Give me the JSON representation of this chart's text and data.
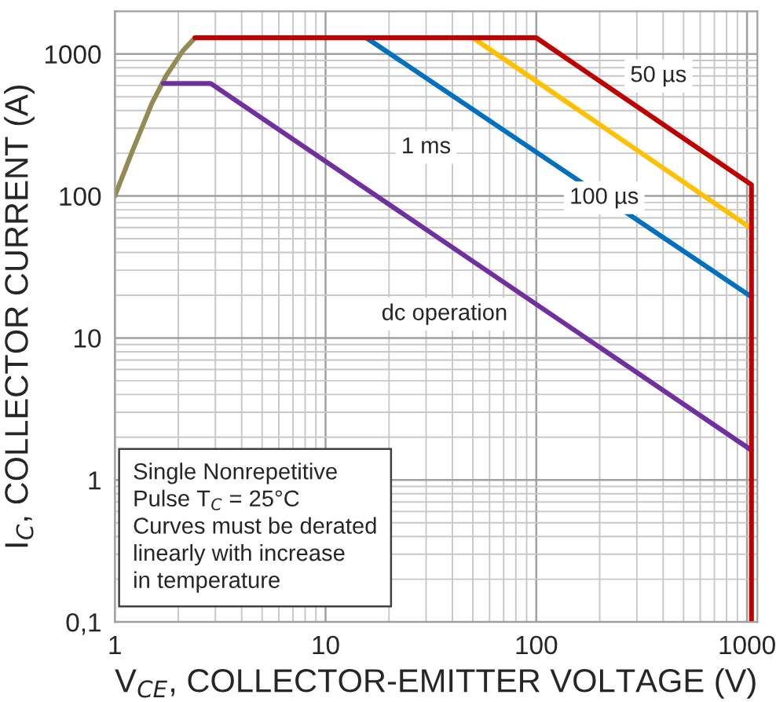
{
  "chart_data": {
    "type": "line",
    "xlabel": "V$_{CE}$, COLLECTOR-EMITTER VOLTAGE (V)",
    "ylabel": "I$_{C}$, COLLECTOR CURRENT (A)",
    "log": "xy",
    "xlim": [
      1,
      1120
    ],
    "ylim": [
      0.1,
      2000
    ],
    "xticks": [
      1,
      10,
      100,
      1000
    ],
    "yticks": [
      {
        "value": 0.1,
        "label": "0,1"
      },
      1,
      10,
      100,
      1000
    ],
    "grid": true,
    "legend": false,
    "line_style": "solid",
    "marker": "none",
    "series": [
      {
        "color": "#948a54",
        "x": [
          1,
          1.2,
          1.5,
          1.75,
          2.1,
          2.4
        ],
        "values": [
          100,
          200,
          450,
          700,
          1050,
          1300
        ]
      },
      {
        "color": "#7030a0",
        "x": [
          1.7,
          2.85,
          1050
        ],
        "values": [
          620,
          620,
          1.62
        ]
      },
      {
        "color": "#0070c0",
        "x": [
          15.6,
          1050
        ],
        "values": [
          1300,
          19.5
        ]
      },
      {
        "color": "#ffc000",
        "x": [
          50,
          1050
        ],
        "values": [
          1300,
          59
        ]
      },
      {
        "color": "#c00000",
        "x": [
          2.4,
          100,
          1050,
          1050
        ],
        "values": [
          1300,
          1300,
          120,
          0.1
        ]
      }
    ],
    "annotations": [
      {
        "text": "50 µs",
        "x": 380,
        "y": 700
      },
      {
        "text": "100 µs",
        "x": 210,
        "y": 97
      },
      {
        "text": "1 ms",
        "x": 30,
        "y": 220
      },
      "dc operation",
      "Single Nonrepetitive\nPulse T$_{C}$ = 25°C\nCurves must be derated\nlinearly with increase\nin temperature"
    ]
  }
}
